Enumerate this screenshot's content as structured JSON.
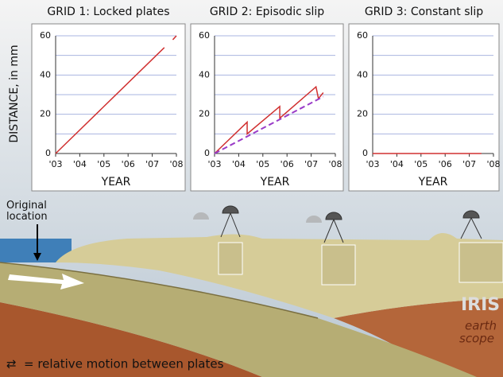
{
  "chart_data": [
    {
      "type": "line",
      "title": "GRID 1: Locked plates",
      "xlabel": "YEAR",
      "ylabel": "DISTANCE, in mm",
      "xlim": [
        3,
        8
      ],
      "xticks": [
        {
          "value": 3,
          "label": "'03"
        },
        {
          "value": 4,
          "label": "'04"
        },
        {
          "value": 5,
          "label": "'05"
        },
        {
          "value": 6,
          "label": "'06"
        },
        {
          "value": 7,
          "label": "'07"
        },
        {
          "value": 8,
          "label": "'08"
        }
      ],
      "ylim": [
        0,
        60
      ],
      "yticks": [
        0,
        20,
        40,
        60
      ],
      "minor_yticks": [
        10,
        30,
        50
      ],
      "grid": true,
      "series": [
        {
          "color": "#d03030",
          "dash": false,
          "x": [
            3,
            7.5,
            7.7,
            7.85,
            8
          ],
          "values": [
            0,
            54,
            null,
            58,
            60
          ]
        }
      ]
    },
    {
      "type": "line",
      "title": "GRID 2: Episodic slip",
      "xlabel": "YEAR",
      "xlim": [
        3,
        8
      ],
      "xticks": [
        {
          "value": 3,
          "label": "'03"
        },
        {
          "value": 4,
          "label": "'04"
        },
        {
          "value": 5,
          "label": "'05"
        },
        {
          "value": 6,
          "label": "'06"
        },
        {
          "value": 7,
          "label": "'07"
        },
        {
          "value": 8,
          "label": "'08"
        }
      ],
      "ylim": [
        0,
        60
      ],
      "yticks": [
        0,
        20,
        40,
        60
      ],
      "minor_yticks": [
        10,
        30,
        50
      ],
      "grid": true,
      "series": [
        {
          "color": "#d03030",
          "dash": false,
          "x": [
            3,
            4.35,
            4.35,
            5.7,
            5.7,
            7.2,
            7.3,
            7.5
          ],
          "values": [
            0,
            16,
            10,
            24,
            18,
            34,
            28,
            31
          ]
        },
        {
          "color": "#9a3cc8",
          "dash": true,
          "x": [
            3,
            7.5
          ],
          "values": [
            0,
            29
          ]
        }
      ]
    },
    {
      "type": "line",
      "title": "GRID 3: Constant slip",
      "xlabel": "YEAR",
      "xlim": [
        3,
        8
      ],
      "xticks": [
        {
          "value": 3,
          "label": "'03"
        },
        {
          "value": 4,
          "label": "'04"
        },
        {
          "value": 5,
          "label": "'05"
        },
        {
          "value": 6,
          "label": "'06"
        },
        {
          "value": 7,
          "label": "'07"
        },
        {
          "value": 8,
          "label": "'08"
        }
      ],
      "ylim": [
        0,
        60
      ],
      "yticks": [
        0,
        20,
        40,
        60
      ],
      "minor_yticks": [
        10,
        30,
        50
      ],
      "grid": true,
      "series": [
        {
          "color": "#d03030",
          "dash": false,
          "x": [
            3,
            7.5
          ],
          "values": [
            0,
            0
          ]
        }
      ]
    }
  ],
  "illustration": {
    "original_location": "Original location",
    "legend": "= relative motion between plates",
    "logo_1": "IRIS",
    "logo_2": "earth",
    "logo_3": "scope"
  }
}
